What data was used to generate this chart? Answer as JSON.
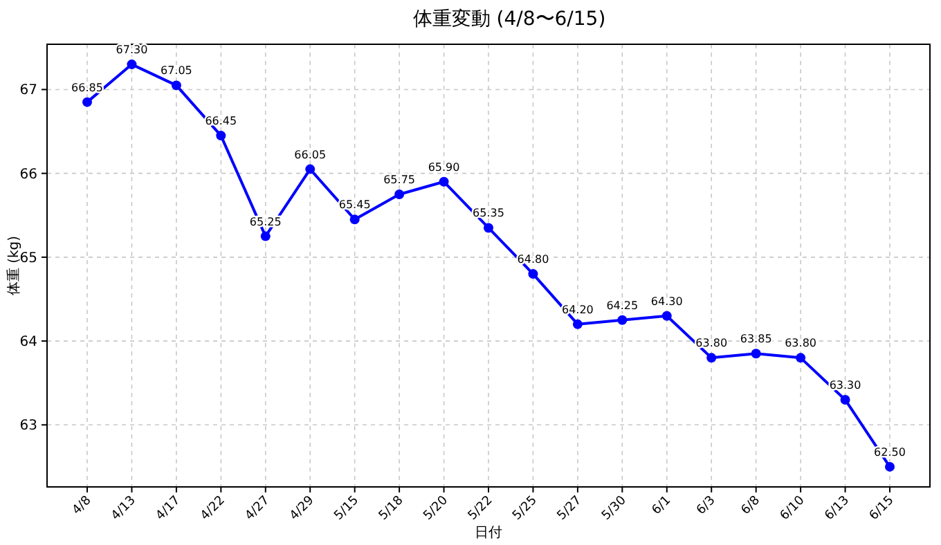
{
  "chart_data": {
    "type": "line",
    "title": "体重変動 (4/8〜6/15)",
    "xlabel": "日付",
    "ylabel": "体重 (kg)",
    "categories": [
      "4/8",
      "4/13",
      "4/17",
      "4/22",
      "4/27",
      "4/29",
      "5/15",
      "5/18",
      "5/20",
      "5/22",
      "5/25",
      "5/27",
      "5/30",
      "6/1",
      "6/3",
      "6/8",
      "6/10",
      "6/13",
      "6/15"
    ],
    "series": [
      {
        "color": "#0000ff",
        "values": [
          66.85,
          67.3,
          67.05,
          66.45,
          65.25,
          66.05,
          65.45,
          65.75,
          65.9,
          65.35,
          64.8,
          64.2,
          64.25,
          64.3,
          63.8,
          63.85,
          63.8,
          63.3,
          62.5
        ],
        "value_labels": [
          "66.85",
          "67.30",
          "67.05",
          "66.45",
          "65.25",
          "66.05",
          "65.45",
          "65.75",
          "65.90",
          "65.35",
          "64.80",
          "64.20",
          "64.25",
          "64.30",
          "63.80",
          "63.85",
          "63.80",
          "63.30",
          "62.50"
        ]
      }
    ],
    "ylim": [
      62.26,
      67.54
    ],
    "yticks": [
      63,
      64,
      65,
      66,
      67
    ],
    "grid": true,
    "marker": "circle",
    "line_style": "solid"
  }
}
